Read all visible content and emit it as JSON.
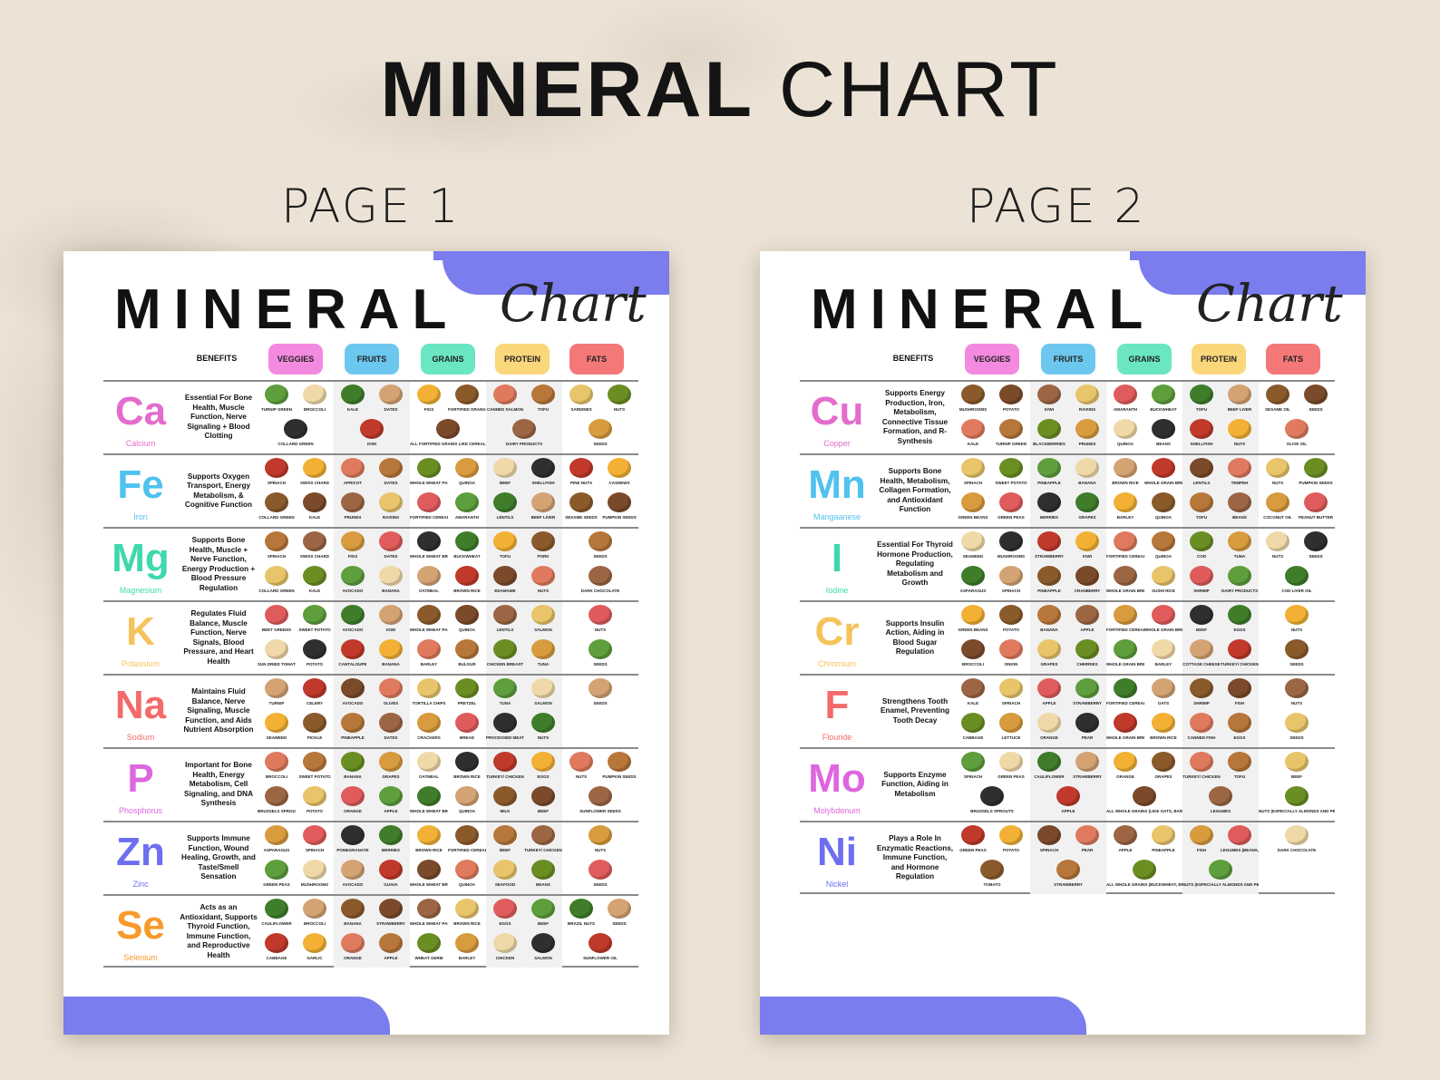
{
  "title": {
    "bold": "MINERAL",
    "light": "CHART"
  },
  "page_labels": [
    "PAGE 1",
    "PAGE 2"
  ],
  "sheet_title": "MINERAL",
  "sheet_script": "Chart",
  "header": {
    "benefits": "BENEFITS",
    "categories": [
      {
        "label": "VEGGIES",
        "color": "#f48ae0"
      },
      {
        "label": "FRUITS",
        "color": "#6cc7ee"
      },
      {
        "label": "GRAINS",
        "color": "#6ae6c3"
      },
      {
        "label": "PROTEIN",
        "color": "#fbd77b"
      },
      {
        "label": "FATS",
        "color": "#f57878"
      }
    ]
  },
  "pages": [
    {
      "minerals": [
        {
          "symbol": "Ca",
          "name": "Calcium",
          "color": "#e46ccd",
          "benefit": "Essential For Bone Health, Muscle Function, Nerve Signaling + Blood Clotting",
          "foods": [
            "TURNIP GREEN",
            "BROCCOLI",
            "COLLARD GREEN",
            "KALE",
            "DATES",
            "KIWI",
            "FIGS",
            "FORTIFIED ORANGE JUICE",
            "ALL FORTIFIED GRAINS LIKE CEREALS, OATMEAL, BREAD, RICE",
            "CANNED SALMON",
            "TOFU",
            "DAIRY PRODUCTS",
            "SARDINES",
            "NUTS",
            "SEEDS"
          ]
        },
        {
          "symbol": "Fe",
          "name": "Iron",
          "color": "#4fc2ef",
          "benefit": "Supports Oxygen Transport, Energy Metabolism, & Cognitive Function",
          "foods": [
            "SPINACH",
            "SWISS CHARD",
            "COLLARD GREEN",
            "KALE",
            "APRICOT",
            "DATES",
            "PRUNES",
            "RAISINS",
            "WHOLE WHEAT PASTA",
            "QUINOA",
            "FORTIFIED CEREALS",
            "AMARANTH",
            "BEEF",
            "SHELLFISH",
            "LENTILS",
            "BEEF LIVER",
            "PINE NUTS",
            "CASHEWS",
            "SESAME SEEDS",
            "PUMPKIN SEEDS"
          ]
        },
        {
          "symbol": "Mg",
          "name": "Magnesium",
          "color": "#3fd8ae",
          "benefit": "Supports Bone Health, Muscle + Nerve Function, Energy Production + Blood Pressure Regulation",
          "foods": [
            "SPINACH",
            "SWISS CHARD",
            "COLLARD GREEN",
            "KALE",
            "FIGS",
            "DATES",
            "AVOCADO",
            "BANANA",
            "WHOLE WHEAT BREAD",
            "BUCKWHEAT",
            "OATMEAL",
            "BROWN RICE",
            "TOFU",
            "PORK",
            "EDAMAME",
            "NUTS",
            "SEEDS",
            "DARK CHOCOLATE"
          ]
        },
        {
          "symbol": "K",
          "name": "Potassium",
          "color": "#f6c35a",
          "benefit": "Regulates Fluid Balance, Muscle Function, Nerve Signals, Blood Pressure, and Heart Health",
          "foods": [
            "BEET GREENS",
            "SWEET POTATO",
            "SUN DRIED TOMATO",
            "POTATO",
            "AVOCADO",
            "KIWI",
            "CANTALOUPE",
            "BANANA",
            "WHOLE WHEAT PASTA",
            "QUINOA",
            "BARLEY",
            "BULGUR",
            "LENTILS",
            "SALMON",
            "CHICKEN BREAST",
            "TUNA",
            "NUTS",
            "SEEDS"
          ]
        },
        {
          "symbol": "Na",
          "name": "Sodium",
          "color": "#f26a6a",
          "benefit": "Maintains Fluid Balance, Nerve Signaling, Muscle Function, and Aids Nutrient Absorption",
          "foods": [
            "TURNIP",
            "CELERY",
            "SEAWEED",
            "PICKLE",
            "AVOCADO",
            "OLIVES",
            "PINEAPPLE",
            "DATES",
            "TORTILLA CHIPS",
            "PRETZEL",
            "CRACKERS",
            "BREAD",
            "TUNA",
            "SALMON",
            "PROCESSED MEATS",
            "NUTS",
            "SEEDS"
          ]
        },
        {
          "symbol": "P",
          "name": "Phosphorus",
          "color": "#de66de",
          "benefit": "Important for Bone Health, Energy Metabolism, Cell Signaling, and DNA Synthesis",
          "foods": [
            "BROCCOLI",
            "SWEET POTATO",
            "BRUSSELS SPROUTS",
            "POTATO",
            "BANANA",
            "GRAPES",
            "ORANGE",
            "APPLE",
            "OATMEAL",
            "BROWN RICE",
            "WHOLE WHEAT BREAD",
            "QUINOA",
            "TURKEY/ CHICKEN",
            "EGGS",
            "MILK",
            "BEEF",
            "NUTS",
            "PUMPKIN SEEDS",
            "SUNFLOWER SEEDS"
          ]
        },
        {
          "symbol": "Zn",
          "name": "Zinc",
          "color": "#6d6ef0",
          "benefit": "Supports Immune Function, Wound Healing, Growth, and Taste/Smell Sensation",
          "foods": [
            "ASPARAGUS",
            "SPINACH",
            "GREEN PEAS",
            "MUSHROOMS",
            "POMEGRANATE",
            "BERRIES",
            "AVOCADO",
            "GUAVA",
            "BROWN RICE",
            "FORTIFIED CEREALS",
            "WHOLE WHEAT BREAD",
            "QUINOA",
            "BEEF",
            "TURKEY/ CHICKEN",
            "SEAFOOD",
            "BEANS",
            "NUTS",
            "SEEDS"
          ]
        },
        {
          "symbol": "Se",
          "name": "Selenium",
          "color": "#f79a2b",
          "benefit": "Acts as an Antioxidant, Supports Thyroid Function, Immune Function, and Reproductive Health",
          "foods": [
            "CAULIFLOWER",
            "BROCCOLI",
            "CABBAGE",
            "GARLIC",
            "BANANA",
            "STRAWBERRY",
            "ORANGE",
            "APPLE",
            "WHOLE WHEAT PASTA",
            "BROWN RICE",
            "WHEAT GERM",
            "BARLEY",
            "EGGS",
            "BEEF",
            "CHICKEN",
            "SALMON",
            "BRAZIL NUTS",
            "SEEDS",
            "SUNFLOWER OIL"
          ]
        }
      ]
    },
    {
      "minerals": [
        {
          "symbol": "Cu",
          "name": "Copper",
          "color": "#e46ccd",
          "benefit": "Supports Energy Production, Iron, Metabolism, Connective Tissue Formation, and R-Synthesis",
          "foods": [
            "MUSHROOMS",
            "POTATO",
            "KALE",
            "TURNIP GREEN",
            "KIWI",
            "RAISINS",
            "BLACKBERRIES",
            "PRUNES",
            "AMARANTH",
            "BUCKWHEAT",
            "QUINOA",
            "BEANS",
            "TOFU",
            "BEEF LIVER",
            "SHELLFISH",
            "NUTS",
            "SESAME OIL",
            "SEEDS",
            "OLIVE OIL"
          ]
        },
        {
          "symbol": "Mn",
          "name": "Mangaanese",
          "color": "#4fc2ef",
          "benefit": "Supports Bone Health, Metabolism, Collagen Formation, and Antioxidant Function",
          "foods": [
            "SPINACH",
            "SWEET POTATO",
            "GREEN BEANS",
            "GREEN PEAS",
            "PINEAPPLE",
            "BANANA",
            "BERRIES",
            "GRAPES",
            "BROWN RICE",
            "WHOLE GRAIN BREAD",
            "BARLEY",
            "QUINOA",
            "LENTILS",
            "TEMPEH",
            "TOFU",
            "BEANS",
            "NUTS",
            "PUMPKIN SEEDS",
            "COCONUT OIL",
            "PEANUT BUTTER"
          ]
        },
        {
          "symbol": "I",
          "name": "Iodine",
          "color": "#3fd8ae",
          "benefit": "Essential For Thyroid Hormone Production, Regulating Metabolism and Growth",
          "foods": [
            "SEAWEED",
            "MUSHROOMS",
            "ASPARAGUS",
            "SPINACH",
            "STRAWBERRY",
            "KIWI",
            "PINEAPPLE",
            "CRANBERRY",
            "FORTIFIED CEREALS",
            "QUINOA",
            "WHOLE GRAIN BREAD",
            "SUSHI RICE",
            "COD",
            "TUNA",
            "SHRIMP",
            "DAIRY PRODUCTS",
            "NUTS",
            "SEEDS",
            "COD LIVER OIL"
          ]
        },
        {
          "symbol": "Cr",
          "name": "Chromium",
          "color": "#f6c35a",
          "benefit": "Supports Insulin Action, Aiding in Blood Sugar Regulation",
          "foods": [
            "GREEN BEANS",
            "POTATO",
            "BROCCOLI",
            "ONION",
            "BANANA",
            "APPLE",
            "GRAPES",
            "CHERRIES",
            "FORTIFIED CEREALS",
            "WHOLE GRAIN BREAD",
            "WHOLE GRAIN BREAD",
            "BARLEY",
            "BEEF",
            "EGGS",
            "COTTAGE CHEESE",
            "TURKEY/ CHICKEN",
            "NUTS",
            "SEEDS"
          ]
        },
        {
          "symbol": "F",
          "name": "Flouride",
          "color": "#f26a6a",
          "benefit": "Strengthens Tooth Enamel, Preventing Tooth Decay",
          "foods": [
            "KALE",
            "SPINACH",
            "CABBAGE",
            "LETTUCE",
            "APPLE",
            "STRAWBERRY",
            "ORANGE",
            "PEAR",
            "FORTIFIED CEREALS",
            "OATS",
            "WHOLE GRAIN BREAD",
            "BROWN RICE",
            "SHRIMP",
            "FISH",
            "CANNED FISH",
            "EGGS",
            "NUTS",
            "SEEDS"
          ]
        },
        {
          "symbol": "Mo",
          "name": "Molybdenum",
          "color": "#de66de",
          "benefit": "Supports Enzyme Function, Aiding in Metabolism",
          "foods": [
            "SPINACH",
            "GREEN PEAS",
            "BRUSSELS SPROUTS",
            "CAULIFLOWER",
            "STRAWBERRY",
            "APPLE",
            "ORANGE",
            "GRAPES",
            "ALL WHOLE GRAINS (LIKE OATS, BARLEY, BUCKWHEAT, QUINOA, ETC)",
            "TURKEY/ CHICKEN",
            "TOFU",
            "LEGUMES",
            "BEEF",
            "NUTS (ESPECIALLY ALMONDS AND PEANUTS)"
          ]
        },
        {
          "symbol": "Ni",
          "name": "Nickel",
          "color": "#6d6ef0",
          "benefit": "Plays a Role In Enzymatic Reactions, Immune Function, and Hormone Regulation",
          "foods": [
            "GREEN PEAS",
            "POTATO",
            "TOMATO",
            "SPINACH",
            "PEAR",
            "STRAWBERRY",
            "APPLE",
            "PINEAPPLE",
            "ALL WHOLE GRAINS (BUCKWHEAT, BROWN RICE, WHOLE WHEAT BREAD, MILLET, ETC.)",
            "FISH",
            "LEGUMES (BEANS, LENTILS, CHICKPEAS)",
            "NUTS (ESPECIALLY ALMONDS AND PEANUTS)",
            "DARK CHOCOLATE"
          ]
        }
      ]
    }
  ]
}
